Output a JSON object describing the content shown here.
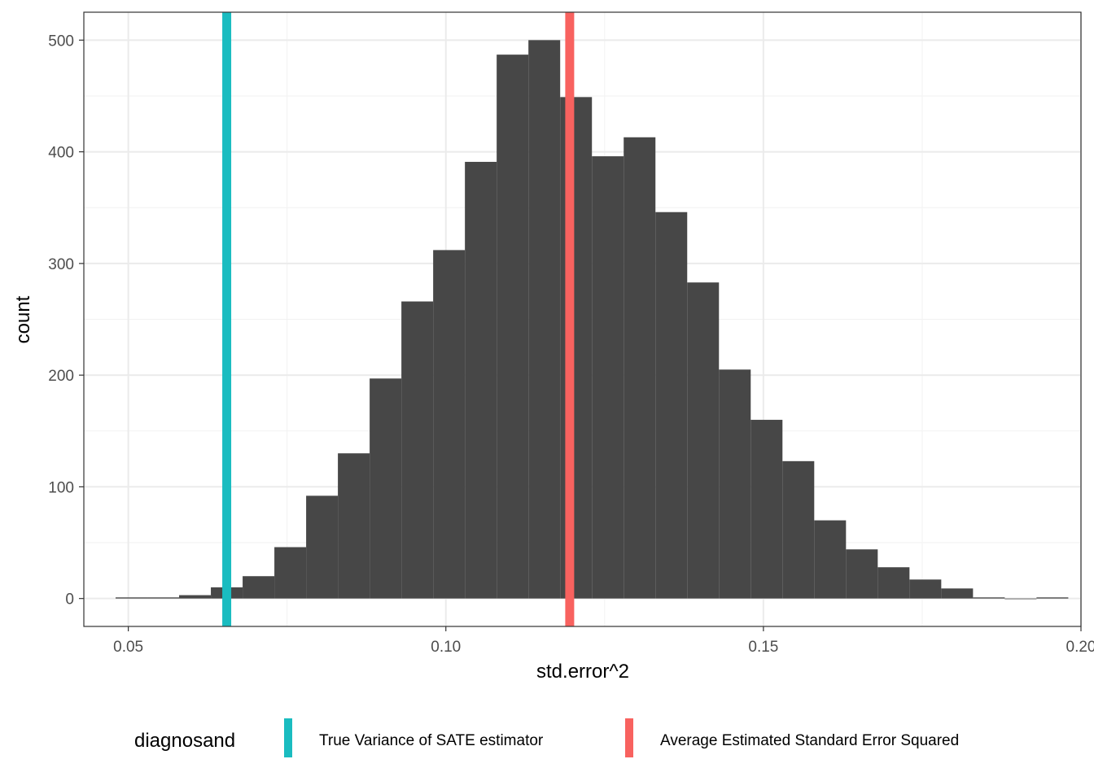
{
  "chart_data": {
    "type": "bar",
    "subtype": "histogram",
    "xlabel": "std.error^2",
    "ylabel": "count",
    "xlim": [
      0.043,
      0.2
    ],
    "ylim": [
      -25,
      525
    ],
    "x_ticks": [
      0.05,
      0.1,
      0.15,
      0.2
    ],
    "x_tick_labels": [
      "0.05",
      "0.10",
      "0.15",
      "0.20"
    ],
    "y_ticks": [
      0,
      100,
      200,
      300,
      400,
      500
    ],
    "y_tick_labels": [
      "0",
      "100",
      "200",
      "300",
      "400",
      "500"
    ],
    "grid": true,
    "bar_color": "#474747",
    "bins": [
      {
        "x0": 0.048,
        "x1": 0.053,
        "count": 1
      },
      {
        "x0": 0.053,
        "x1": 0.058,
        "count": 1
      },
      {
        "x0": 0.058,
        "x1": 0.063,
        "count": 3
      },
      {
        "x0": 0.063,
        "x1": 0.068,
        "count": 10
      },
      {
        "x0": 0.068,
        "x1": 0.073,
        "count": 20
      },
      {
        "x0": 0.073,
        "x1": 0.078,
        "count": 46
      },
      {
        "x0": 0.078,
        "x1": 0.083,
        "count": 92
      },
      {
        "x0": 0.083,
        "x1": 0.088,
        "count": 130
      },
      {
        "x0": 0.088,
        "x1": 0.093,
        "count": 197
      },
      {
        "x0": 0.093,
        "x1": 0.098,
        "count": 266
      },
      {
        "x0": 0.098,
        "x1": 0.103,
        "count": 312
      },
      {
        "x0": 0.103,
        "x1": 0.108,
        "count": 391
      },
      {
        "x0": 0.108,
        "x1": 0.113,
        "count": 487
      },
      {
        "x0": 0.113,
        "x1": 0.118,
        "count": 500
      },
      {
        "x0": 0.118,
        "x1": 0.123,
        "count": 449
      },
      {
        "x0": 0.123,
        "x1": 0.128,
        "count": 396
      },
      {
        "x0": 0.128,
        "x1": 0.133,
        "count": 413
      },
      {
        "x0": 0.133,
        "x1": 0.138,
        "count": 346
      },
      {
        "x0": 0.138,
        "x1": 0.143,
        "count": 283
      },
      {
        "x0": 0.143,
        "x1": 0.148,
        "count": 205
      },
      {
        "x0": 0.148,
        "x1": 0.153,
        "count": 160
      },
      {
        "x0": 0.153,
        "x1": 0.158,
        "count": 123
      },
      {
        "x0": 0.158,
        "x1": 0.163,
        "count": 70
      },
      {
        "x0": 0.163,
        "x1": 0.168,
        "count": 44
      },
      {
        "x0": 0.168,
        "x1": 0.173,
        "count": 28
      },
      {
        "x0": 0.173,
        "x1": 0.178,
        "count": 17
      },
      {
        "x0": 0.178,
        "x1": 0.183,
        "count": 9
      },
      {
        "x0": 0.183,
        "x1": 0.188,
        "count": 1
      },
      {
        "x0": 0.188,
        "x1": 0.193,
        "count": 0
      },
      {
        "x0": 0.193,
        "x1": 0.198,
        "count": 1
      }
    ],
    "vlines": [
      {
        "name": "True Variance of SATE estimator",
        "x": 0.0655,
        "color": "#1ABCC0"
      },
      {
        "name": "Average Estimated Standard Error Squared",
        "x": 0.1195,
        "color": "#F8625F"
      }
    ],
    "legend": {
      "title": "diagnosand",
      "position": "bottom",
      "entries": [
        {
          "label": "True Variance of SATE estimator",
          "color": "#1ABCC0"
        },
        {
          "label": "Average Estimated Standard Error Squared",
          "color": "#F8625F"
        }
      ]
    }
  }
}
